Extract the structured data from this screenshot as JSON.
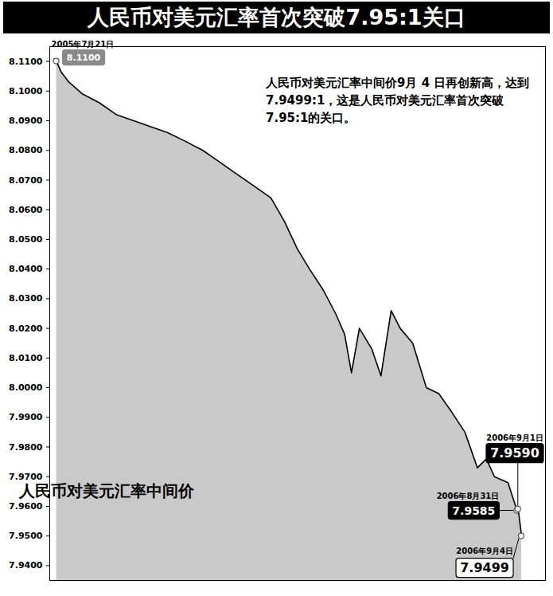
{
  "chart_data": {
    "type": "line",
    "title": "人民币对美元汇率首次突破7.95:1关口",
    "note": "人民币对美元汇率中间价9月 4 日再创新高，达到7.9499:1，这是人民币对美元汇率首次突破7.95:1的关口。",
    "x": [
      "2005-07-21",
      "2005-07-25",
      "2005-08-01",
      "2005-08-13",
      "2005-08-28",
      "2005-09-12",
      "2005-09-27",
      "2005-10-12",
      "2005-10-27",
      "2005-11-12",
      "2005-11-27",
      "2005-12-12",
      "2005-12-27",
      "2006-01-11",
      "2006-01-26",
      "2006-02-07",
      "2006-02-18",
      "2006-03-01",
      "2006-03-13",
      "2006-03-24",
      "2006-04-01",
      "2006-04-07",
      "2006-04-14",
      "2006-04-25",
      "2006-05-03",
      "2006-05-12",
      "2006-05-20",
      "2006-05-31",
      "2006-06-12",
      "2006-06-23",
      "2006-07-04",
      "2006-07-16",
      "2006-07-27",
      "2006-08-04",
      "2006-08-11",
      "2006-08-23",
      "2006-08-31",
      "2006-09-01",
      "2006-09-04"
    ],
    "series": [
      {
        "name": "人民币对美元汇率中间价",
        "color": "#000000",
        "values": [
          8.11,
          8.1065,
          8.103,
          8.099,
          8.096,
          8.092,
          8.09,
          8.088,
          8.086,
          8.083,
          8.08,
          8.076,
          8.072,
          8.068,
          8.064,
          8.056,
          8.047,
          8.04,
          8.033,
          8.025,
          8.018,
          8.005,
          8.02,
          8.013,
          8.004,
          8.026,
          8.02,
          8.015,
          8.0,
          7.998,
          7.992,
          7.985,
          7.973,
          7.976,
          7.97,
          7.968,
          7.9585,
          7.959,
          7.9499
        ]
      }
    ],
    "xlim": [
      "2005-07-15",
      "2006-09-25"
    ],
    "ylim": [
      7.935,
      8.115
    ],
    "yticks": [
      {
        "value": 7.94,
        "label": "7.9400"
      },
      {
        "value": 7.95,
        "label": "7.9500"
      },
      {
        "value": 7.96,
        "label": "7.9600"
      },
      {
        "value": 7.97,
        "label": "7.9700"
      },
      {
        "value": 7.98,
        "label": "7.9800"
      },
      {
        "value": 7.99,
        "label": "7.9900"
      },
      {
        "value": 8,
        "label": "8.0000"
      },
      {
        "value": 8.01,
        "label": "8.0100"
      },
      {
        "value": 8.02,
        "label": "8.0200"
      },
      {
        "value": 8.03,
        "label": "8.0300"
      },
      {
        "value": 8.04,
        "label": "8.0400"
      },
      {
        "value": 8.05,
        "label": "8.0500"
      },
      {
        "value": 8.06,
        "label": "8.0600"
      },
      {
        "value": 8.07,
        "label": "8.0700"
      },
      {
        "value": 8.08,
        "label": "8.0800"
      },
      {
        "value": 8.09,
        "label": "8.0900"
      },
      {
        "value": 8.1,
        "label": "8.1000"
      },
      {
        "value": 8.11,
        "label": "8.1100"
      }
    ],
    "tick_labels": "y",
    "annotations": [
      {
        "date": "2005年7月21日",
        "label": "8.1100",
        "x": "2005-07-21",
        "y": 8.11
      },
      {
        "date": "2006年8月31日",
        "label": "7.9585",
        "x": "2006-08-31",
        "y": 7.9585
      },
      {
        "date": "2006年9月1日",
        "label": "7.9590",
        "x": "2006-09-01",
        "y": 7.959
      },
      {
        "date": "2006年9月4日",
        "label": "7.9499",
        "x": "2006-09-04",
        "y": 7.9499
      }
    ]
  }
}
